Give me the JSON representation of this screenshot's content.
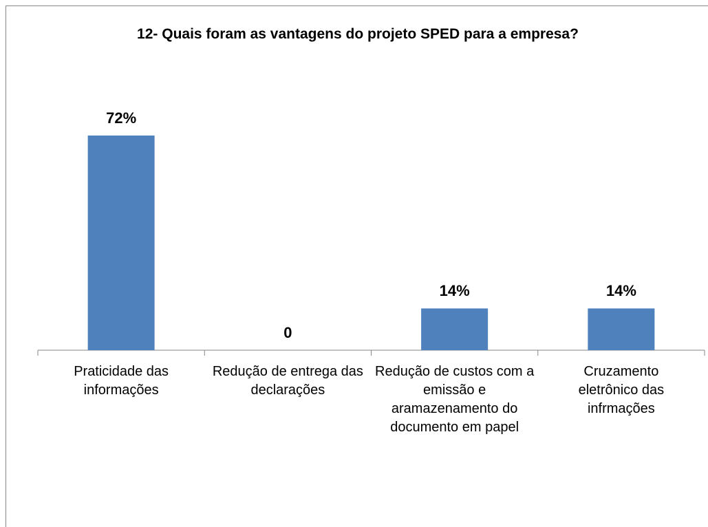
{
  "chart_data": {
    "type": "bar",
    "title": "12- Quais foram as vantagens do projeto SPED para a empresa?",
    "categories": [
      "Praticidade das informações",
      "Redução de entrega das declarações",
      "Redução de custos com a emissão e aramazenamento do documento em papel",
      "Cruzamento eletrônico das infrmações"
    ],
    "values": [
      72,
      0,
      14,
      14
    ],
    "value_labels": [
      "72%",
      "0",
      "14%",
      "14%"
    ],
    "color": "#4f81bd"
  }
}
